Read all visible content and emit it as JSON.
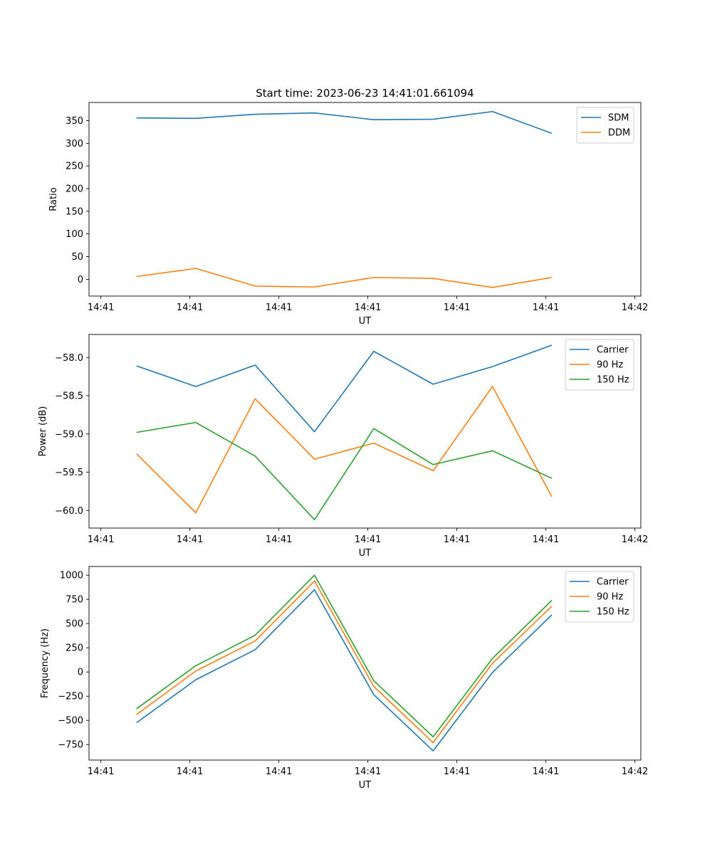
{
  "figure": {
    "title": "Start time: 2023-06-23 14:41:01.661094"
  },
  "colors": {
    "blue": "#1f77b4",
    "orange": "#ff7f0e",
    "green": "#2ca02c"
  },
  "chart_data": [
    {
      "type": "line",
      "title": "Start time: 2023-06-23 14:41:01.661094",
      "xlabel": "UT",
      "ylabel": "Ratio",
      "x": [
        1,
        2,
        3,
        4,
        5,
        6,
        7,
        8
      ],
      "xlim": [
        0.2,
        9.5
      ],
      "xticks": [
        0.4,
        1.9,
        3.4,
        4.9,
        6.4,
        7.9,
        9.4
      ],
      "xticklabels": [
        "14:41",
        "14:41",
        "14:41",
        "14:41",
        "14:41",
        "14:41",
        "14:42"
      ],
      "ylim": [
        -37,
        390
      ],
      "yticks": [
        0,
        50,
        100,
        150,
        200,
        250,
        300,
        350
      ],
      "yticklabels": [
        "0",
        "50",
        "100",
        "150",
        "200",
        "250",
        "300",
        "350"
      ],
      "legend": "top-right",
      "grid": false,
      "series": [
        {
          "name": "SDM",
          "color": "#1f77b4",
          "values": [
            356,
            355,
            364,
            367,
            352,
            353,
            370,
            322
          ]
        },
        {
          "name": "DDM",
          "color": "#ff7f0e",
          "values": [
            6,
            24,
            -15,
            -17,
            4,
            2,
            -18,
            4
          ]
        }
      ]
    },
    {
      "type": "line",
      "title": "",
      "xlabel": "UT",
      "ylabel": "Power (dB)",
      "x": [
        1,
        2,
        3,
        4,
        5,
        6,
        7,
        8
      ],
      "xlim": [
        0.2,
        9.5
      ],
      "xticks": [
        0.4,
        1.9,
        3.4,
        4.9,
        6.4,
        7.9,
        9.4
      ],
      "xticklabels": [
        "14:41",
        "14:41",
        "14:41",
        "14:41",
        "14:41",
        "14:41",
        "14:42"
      ],
      "ylim": [
        -60.23,
        -57.7
      ],
      "yticks": [
        -60.0,
        -59.5,
        -59.0,
        -58.5,
        -58.0
      ],
      "yticklabels": [
        "−60.0",
        "−59.5",
        "−59.0",
        "−58.5",
        "−58.0"
      ],
      "legend": "top-right",
      "grid": false,
      "series": [
        {
          "name": "Carrier",
          "color": "#1f77b4",
          "values": [
            -58.11,
            -58.38,
            -58.1,
            -58.97,
            -57.92,
            -58.35,
            -58.12,
            -57.84
          ]
        },
        {
          "name": "90 Hz",
          "color": "#ff7f0e",
          "values": [
            -59.26,
            -60.03,
            -58.54,
            -59.33,
            -59.12,
            -59.48,
            -58.38,
            -59.82
          ]
        },
        {
          "name": "150 Hz",
          "color": "#2ca02c",
          "values": [
            -58.98,
            -58.85,
            -59.29,
            -60.12,
            -58.93,
            -59.4,
            -59.22,
            -59.58
          ]
        }
      ]
    },
    {
      "type": "line",
      "title": "",
      "xlabel": "UT",
      "ylabel": "Frequency (Hz)",
      "x": [
        1,
        2,
        3,
        4,
        5,
        6,
        7,
        8
      ],
      "xlim": [
        0.2,
        9.5
      ],
      "xticks": [
        0.4,
        1.9,
        3.4,
        4.9,
        6.4,
        7.9,
        9.4
      ],
      "xticklabels": [
        "14:41",
        "14:41",
        "14:41",
        "14:41",
        "14:41",
        "14:41",
        "14:42"
      ],
      "ylim": [
        -910,
        1090
      ],
      "yticks": [
        -750,
        -500,
        -250,
        0,
        250,
        500,
        750,
        1000
      ],
      "yticklabels": [
        "−750",
        "−500",
        "−250",
        "0",
        "250",
        "500",
        "750",
        "1000"
      ],
      "legend": "top-right",
      "grid": false,
      "series": [
        {
          "name": "Carrier",
          "color": "#1f77b4",
          "values": [
            -525,
            -80,
            230,
            850,
            -235,
            -815,
            -5,
            590
          ]
        },
        {
          "name": "90 Hz",
          "color": "#ff7f0e",
          "values": [
            -440,
            10,
            320,
            940,
            -150,
            -730,
            90,
            680
          ]
        },
        {
          "name": "150 Hz",
          "color": "#2ca02c",
          "values": [
            -380,
            65,
            380,
            1000,
            -90,
            -670,
            140,
            740
          ]
        }
      ]
    }
  ]
}
